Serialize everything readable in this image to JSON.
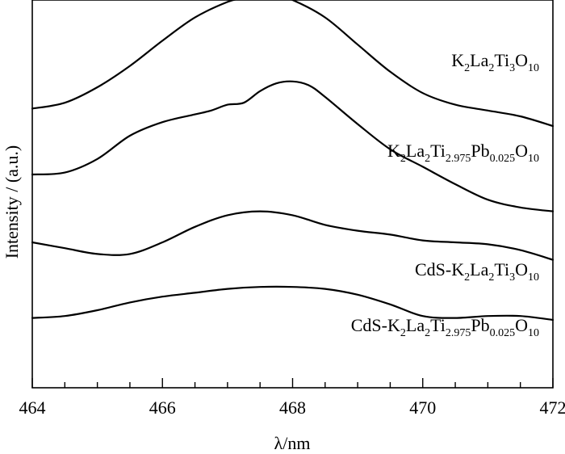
{
  "chart_data": {
    "type": "line",
    "xlabel": "λ/nm",
    "ylabel": "Intensity / (a.u.)",
    "xlim": [
      464,
      472
    ],
    "ylim": [
      0,
      10
    ],
    "x_major_ticks": [
      464,
      466,
      468,
      470,
      472
    ],
    "x_minor_step": 0.5,
    "y_ticks_shown": false,
    "grid": false,
    "legend": "inline labels beside curves",
    "series": [
      {
        "name": "K2La2Ti3O10",
        "label_parts": [
          [
            "K",
            ""
          ],
          [
            "2",
            "sub"
          ],
          [
            "La",
            ""
          ],
          [
            "2",
            "sub"
          ],
          [
            "Ti",
            ""
          ],
          [
            "3",
            "sub"
          ],
          [
            "O",
            ""
          ],
          [
            "10",
            "sub"
          ]
        ],
        "x": [
          464,
          464.5,
          465,
          465.5,
          466,
          466.5,
          467,
          467.25,
          467.5,
          467.75,
          468,
          468.5,
          469,
          469.5,
          470,
          470.5,
          471,
          471.5,
          472
        ],
        "y": [
          7.2,
          7.35,
          7.75,
          8.3,
          8.95,
          9.55,
          9.95,
          10.05,
          10.12,
          10.1,
          10.0,
          9.55,
          8.85,
          8.15,
          7.6,
          7.3,
          7.15,
          7.0,
          6.75
        ]
      },
      {
        "name": "K2La2Ti2.975Pb0.025O10",
        "label_parts": [
          [
            "K",
            ""
          ],
          [
            "2",
            "sub"
          ],
          [
            "La",
            ""
          ],
          [
            "2",
            "sub"
          ],
          [
            "Ti",
            ""
          ],
          [
            "2.975",
            "sub"
          ],
          [
            "Pb",
            ""
          ],
          [
            "0.025",
            "sub"
          ],
          [
            "O",
            ""
          ],
          [
            "10",
            "sub"
          ]
        ],
        "x": [
          464,
          464.5,
          465,
          465.5,
          466,
          466.5,
          466.75,
          467,
          467.25,
          467.5,
          467.75,
          468,
          468.25,
          468.5,
          469,
          469.5,
          470,
          470.5,
          471,
          471.5,
          472
        ],
        "y": [
          5.5,
          5.55,
          5.9,
          6.5,
          6.85,
          7.05,
          7.15,
          7.3,
          7.35,
          7.65,
          7.85,
          7.9,
          7.8,
          7.5,
          6.8,
          6.15,
          5.7,
          5.25,
          4.85,
          4.65,
          4.55
        ]
      },
      {
        "name": "CdS-K2La2Ti3O10",
        "label_parts": [
          [
            "CdS-K",
            ""
          ],
          [
            "2",
            "sub"
          ],
          [
            "La",
            ""
          ],
          [
            "2",
            "sub"
          ],
          [
            "Ti",
            ""
          ],
          [
            "3",
            "sub"
          ],
          [
            "O",
            ""
          ],
          [
            "10",
            "sub"
          ]
        ],
        "x": [
          464,
          464.5,
          465,
          465.5,
          466,
          466.5,
          467,
          467.5,
          468,
          468.5,
          469,
          469.5,
          470,
          470.5,
          471,
          471.5,
          472
        ],
        "y": [
          3.75,
          3.6,
          3.45,
          3.45,
          3.75,
          4.15,
          4.45,
          4.55,
          4.45,
          4.2,
          4.05,
          3.95,
          3.8,
          3.75,
          3.7,
          3.55,
          3.3
        ]
      },
      {
        "name": "CdS-K2La2Ti2.975Pb0.025O10",
        "label_parts": [
          [
            "CdS-K",
            ""
          ],
          [
            "2",
            "sub"
          ],
          [
            "La",
            ""
          ],
          [
            "2",
            "sub"
          ],
          [
            "Ti",
            ""
          ],
          [
            "2.975",
            "sub"
          ],
          [
            "Pb",
            ""
          ],
          [
            "0.025",
            "sub"
          ],
          [
            "O",
            ""
          ],
          [
            "10",
            "sub"
          ]
        ],
        "x": [
          464,
          464.5,
          465,
          465.5,
          466,
          466.5,
          467,
          467.5,
          468,
          468.5,
          469,
          469.5,
          470,
          470.5,
          471,
          471.5,
          472
        ],
        "y": [
          1.8,
          1.85,
          2.0,
          2.2,
          2.35,
          2.45,
          2.55,
          2.6,
          2.6,
          2.55,
          2.4,
          2.15,
          1.85,
          1.8,
          1.85,
          1.85,
          1.75
        ]
      }
    ]
  }
}
